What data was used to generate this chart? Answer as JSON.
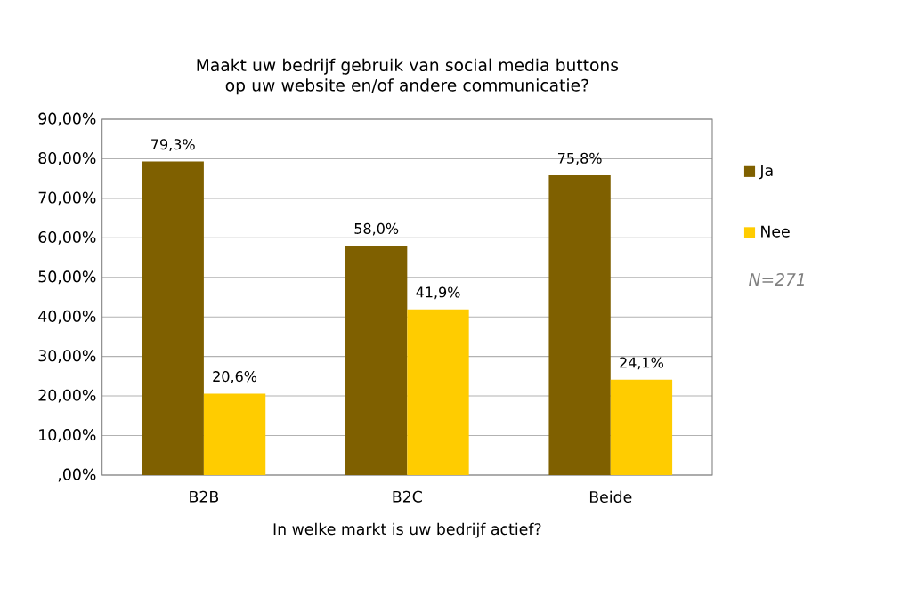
{
  "chart_data": {
    "type": "bar",
    "title": "Maakt uw bedrijf gebruik van social media buttons op uw website en/of andere communicatie?",
    "xlabel": "In welke markt is uw bedrijf actief?",
    "categories": [
      "B2B",
      "B2C",
      "Beide"
    ],
    "series": [
      {
        "name": "Ja",
        "color": "#7f6000",
        "values": [
          79.3,
          58.0,
          75.8
        ],
        "value_labels": [
          "79,3%",
          "58,0%",
          "75,8%"
        ]
      },
      {
        "name": "Nee",
        "color": "#ffcc00",
        "values": [
          20.6,
          41.9,
          24.1
        ],
        "value_labels": [
          "20,6%",
          "41,9%",
          "24,1%"
        ]
      }
    ],
    "ylim": [
      0,
      90
    ],
    "yticks": [
      {
        "value": 0,
        "label": ",00%"
      },
      {
        "value": 10,
        "label": "10,00%"
      },
      {
        "value": 20,
        "label": "20,00%"
      },
      {
        "value": 30,
        "label": "30,00%"
      },
      {
        "value": 40,
        "label": "40,00%"
      },
      {
        "value": 50,
        "label": "50,00%"
      },
      {
        "value": 60,
        "label": "60,00%"
      },
      {
        "value": 70,
        "label": "70,00%"
      },
      {
        "value": 80,
        "label": "80,00%"
      },
      {
        "value": 90,
        "label": "90,00%"
      }
    ],
    "grid": "y",
    "legend": "right",
    "annotations": [
      "N=271"
    ]
  }
}
